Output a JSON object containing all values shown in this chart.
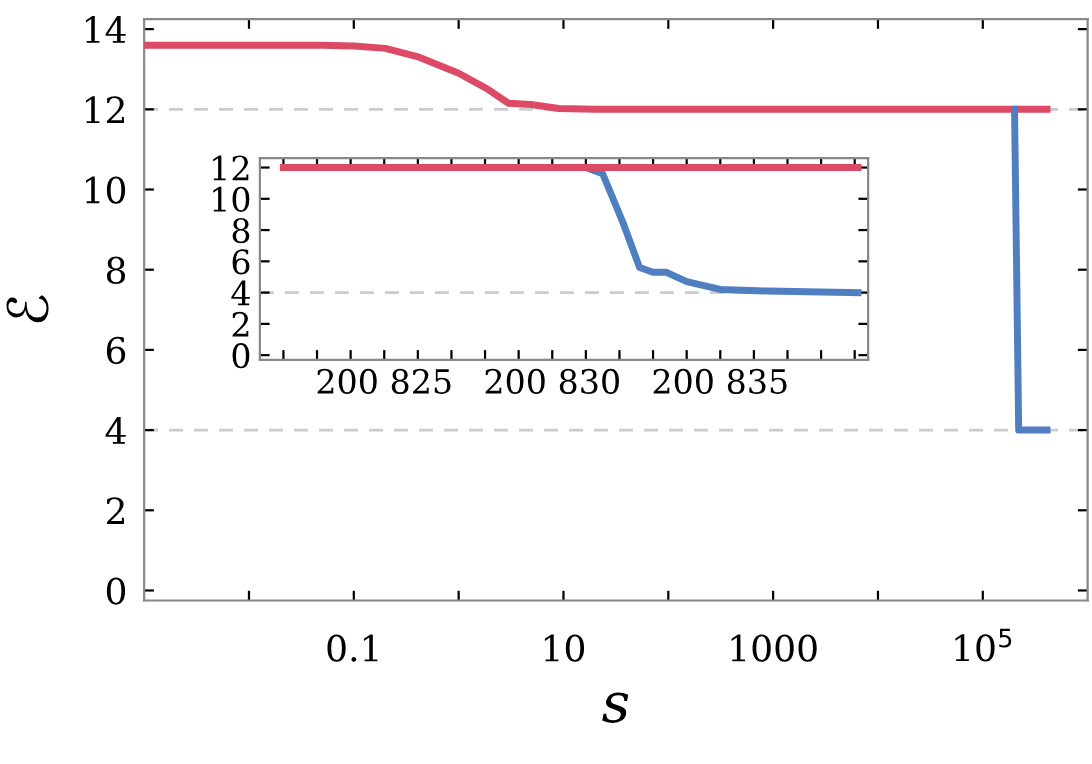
{
  "chart_data": [
    {
      "type": "line",
      "xlabel": "s",
      "ylabel": "ℰ",
      "log": "x",
      "xlim": [
        0.001,
        1000000
      ],
      "ylim": [
        -0.25,
        14.25
      ],
      "xticks": [
        {
          "value": 0.01,
          "label": null
        },
        0.1,
        {
          "value": 1,
          "label": null
        },
        10,
        {
          "value": 100,
          "label": null
        },
        1000,
        {
          "value": 10000,
          "label": null
        },
        {
          "value": 100000,
          "label": "10$^{5}$"
        }
      ],
      "yticks": [
        0,
        2,
        4,
        6,
        8,
        10,
        12,
        14
      ],
      "grid": false,
      "legend": false,
      "line_style": "solid",
      "ref_lines": [
        {
          "axis": "y",
          "value": 12,
          "color": "#cccccc",
          "line_style": "dashed"
        },
        {
          "axis": "y",
          "value": 4,
          "color": "#cccccc",
          "line_style": "dashed"
        }
      ],
      "series": [
        {
          "color": "#dc4a66",
          "x": [
            0.001,
            0.01,
            0.05,
            0.1,
            0.2,
            0.42,
            1,
            1.9,
            3,
            4.9,
            9,
            20,
            100,
            1000,
            410000
          ],
          "values": [
            13.6,
            13.6,
            13.6,
            13.58,
            13.52,
            13.3,
            12.9,
            12.5,
            12.15,
            12.12,
            12.02,
            12.0,
            12.0,
            12.0,
            12.0
          ]
        },
        {
          "color": "#4f7fc0",
          "x": [
            200830,
            220000,
            410000
          ],
          "values": [
            12,
            4,
            4
          ]
        }
      ]
    },
    {
      "type": "line",
      "xlim": [
        200821.3,
        200839.4
      ],
      "ylim": [
        -0.3,
        12.6
      ],
      "xticks": [
        {
          "value": 200822,
          "label": null
        },
        {
          "value": 200823,
          "label": null
        },
        {
          "value": 200824,
          "label": null
        },
        {
          "value": 200825,
          "label": "200 825"
        },
        {
          "value": 200826,
          "label": null
        },
        {
          "value": 200827,
          "label": null
        },
        {
          "value": 200828,
          "label": null
        },
        {
          "value": 200829,
          "label": null
        },
        {
          "value": 200830,
          "label": "200 830"
        },
        {
          "value": 200831,
          "label": null
        },
        {
          "value": 200832,
          "label": null
        },
        {
          "value": 200833,
          "label": null
        },
        {
          "value": 200834,
          "label": null
        },
        {
          "value": 200835,
          "label": "200 835"
        },
        {
          "value": 200836,
          "label": null
        },
        {
          "value": 200837,
          "label": null
        },
        {
          "value": 200838,
          "label": null
        },
        {
          "value": 200839,
          "label": null
        }
      ],
      "yticks": [
        0,
        2,
        4,
        6,
        8,
        10,
        12
      ],
      "grid": false,
      "legend": false,
      "line_style": "solid",
      "ref_lines": [
        {
          "axis": "y",
          "value": 4,
          "color": "#cccccc",
          "line_style": "dashed"
        }
      ],
      "series": [
        {
          "color": "#4f7fc0",
          "x": [
            200822,
            200831,
            200831.5,
            200832.1,
            200832.6,
            200833.0,
            200833.4,
            200834,
            200835,
            200836.4,
            200839.1
          ],
          "values": [
            12,
            12,
            11.6,
            8.5,
            5.6,
            5.3,
            5.3,
            4.7,
            4.2,
            4.1,
            4.0
          ]
        },
        {
          "color": "#dc4a66",
          "x": [
            200822,
            200839.1
          ],
          "values": [
            12,
            12
          ]
        }
      ]
    }
  ]
}
